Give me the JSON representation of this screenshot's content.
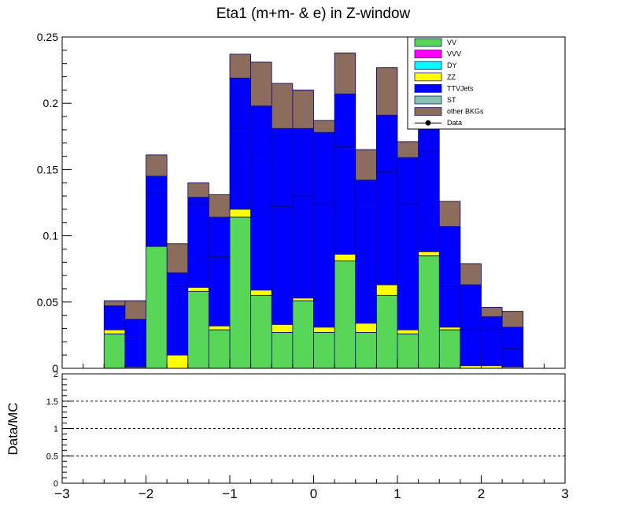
{
  "chart_data": {
    "type": "bar",
    "title": "Eta1 (m+m- & e) in Z-window",
    "xlabel": "",
    "ylabel": "",
    "xlim": [
      -3,
      3
    ],
    "ylim": [
      0,
      0.25
    ],
    "x_ticks": [
      "−3",
      "−2",
      "−1",
      "0",
      "1",
      "2",
      "3"
    ],
    "y_ticks": [
      "0",
      "0.05",
      "0.1",
      "0.15",
      "0.2",
      "0.25"
    ],
    "bin_edges": [
      -2.5,
      -2.25,
      -2.0,
      -1.75,
      -1.5,
      -1.25,
      -1.0,
      -0.75,
      -0.5,
      -0.25,
      0.0,
      0.25,
      0.5,
      0.75,
      1.0,
      1.25,
      1.5,
      1.75,
      2.0,
      2.25,
      2.5
    ],
    "series": [
      {
        "name": "VV",
        "color": "#57d657",
        "values": [
          0.026,
          0.001,
          0.092,
          0.0,
          0.058,
          0.029,
          0.114,
          0.055,
          0.027,
          0.051,
          0.027,
          0.081,
          0.027,
          0.055,
          0.026,
          0.085,
          0.029,
          0.0,
          0.0,
          0.0
        ]
      },
      {
        "name": "VVV",
        "color": "#ff00ff",
        "values": [
          0,
          0,
          0,
          0,
          0,
          0,
          0,
          0,
          0,
          0,
          0,
          0,
          0,
          0,
          0,
          0,
          0,
          0,
          0,
          0
        ]
      },
      {
        "name": "DY",
        "color": "#00ffff",
        "values": [
          0,
          0,
          0,
          0,
          0,
          0,
          0,
          0,
          0,
          0,
          0,
          0,
          0,
          0,
          0,
          0,
          0,
          0,
          0,
          0
        ]
      },
      {
        "name": "ZZ",
        "color": "#ffff00",
        "values": [
          0.003,
          0.0,
          0.0,
          0.01,
          0.003,
          0.003,
          0.006,
          0.004,
          0.006,
          0.002,
          0.004,
          0.005,
          0.007,
          0.008,
          0.003,
          0.003,
          0.002,
          0.002,
          0.002,
          0.001
        ]
      },
      {
        "name": "TTVJets",
        "color": "#0000ff",
        "values": [
          0.018,
          0.036,
          0.053,
          0.062,
          0.068,
          0.082,
          0.099,
          0.139,
          0.148,
          0.128,
          0.147,
          0.121,
          0.108,
          0.128,
          0.13,
          0.094,
          0.076,
          0.061,
          0.037,
          0.03
        ]
      },
      {
        "name": "ST",
        "color": "#86c5b1",
        "values": [
          0,
          0,
          0,
          0,
          0,
          0,
          0,
          0,
          0,
          0,
          0,
          0,
          0,
          0,
          0,
          0,
          0,
          0,
          0,
          0
        ]
      },
      {
        "name": "other BKGs",
        "color": "#8c6c5c",
        "values": [
          0.004,
          0.014,
          0.016,
          0.022,
          0.011,
          0.017,
          0.018,
          0.033,
          0.034,
          0.029,
          0.009,
          0.031,
          0.023,
          0.036,
          0.012,
          0.024,
          0.019,
          0.016,
          0.007,
          0.012
        ]
      }
    ],
    "inner_lines": [
      0.047,
      0.023,
      0.132,
      0.062,
      0.124,
      0.084,
      0.181,
      0.157,
      0.122,
      0.13,
      0.124,
      0.167,
      0.125,
      0.148,
      0.124,
      0.164,
      0.062,
      0.029,
      0.029,
      0.015
    ],
    "legend_entries": [
      "VV",
      "VVV",
      "DY",
      "ZZ",
      "TTVJets",
      "ST",
      "other BKGs",
      "Data"
    ],
    "legend_position": "top-right",
    "data_series": {
      "name": "Data",
      "values": []
    },
    "ratio_panel": {
      "ylabel": "Data/MC",
      "ylim": [
        0,
        2
      ],
      "y_ticks": [
        "0",
        "0.5",
        "1",
        "1.5",
        "2"
      ],
      "reference_lines": [
        0.5,
        1.0,
        1.5
      ],
      "values": []
    }
  }
}
